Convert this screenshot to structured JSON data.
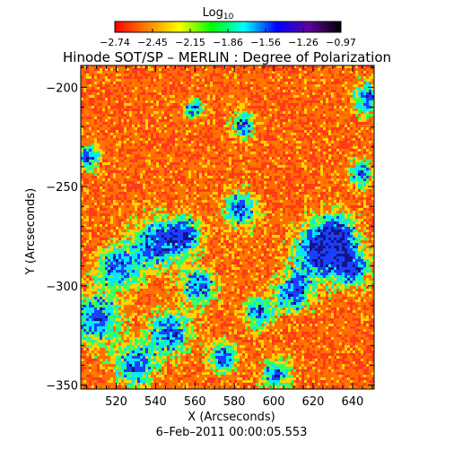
{
  "figure": {
    "title": "Hinode SOT/SP – MERLIN : Degree of Polarization",
    "timestamp": "6–Feb–2011 00:00:05.553"
  },
  "colorbar": {
    "label": "Log",
    "label_sub": "10",
    "ticks": [
      "−2.74",
      "−2.45",
      "−2.15",
      "−1.86",
      "−1.56",
      "−1.26",
      "−0.97"
    ],
    "colors": [
      "#ff0000",
      "#ff8000",
      "#ffff00",
      "#00ff00",
      "#00ffff",
      "#0000ff",
      "#6000a0",
      "#000000"
    ]
  },
  "chart_data": {
    "type": "heatmap",
    "title": "Hinode SOT/SP – MERLIN : Degree of Polarization",
    "xlabel": "X (Arcseconds)",
    "ylabel": "Y (Arcseconds)",
    "xlim": [
      502,
      651
    ],
    "ylim": [
      -352,
      -189
    ],
    "x_ticks": [
      520,
      540,
      560,
      580,
      600,
      620,
      640
    ],
    "y_ticks": [
      -200,
      -250,
      -300,
      -350
    ],
    "x_tick_labels": [
      "520",
      "540",
      "560",
      "580",
      "600",
      "620",
      "640"
    ],
    "y_tick_labels": [
      "−200",
      "−250",
      "−300",
      "−350"
    ],
    "color_scale": "log10",
    "value_range": [
      -2.74,
      -0.97
    ],
    "grid": false
  }
}
